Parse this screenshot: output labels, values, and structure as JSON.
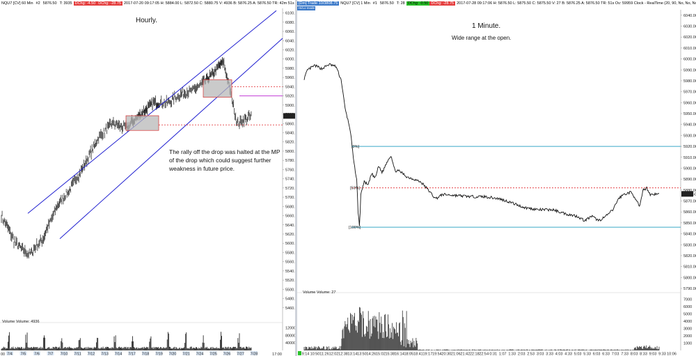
{
  "left": {
    "header_segments": [
      {
        "text": "NQU7 [CV]  60 Min",
        "style": "plain"
      },
      {
        "text": "#2",
        "style": "plain"
      },
      {
        "text": "5876.50",
        "style": "plain"
      },
      {
        "text": "T: 3935",
        "style": "plain"
      },
      {
        "text": "DChg: -4.50",
        "style": "red"
      },
      {
        "text": "DChg: -28.75",
        "style": "red"
      },
      {
        "text": "2017-07-20 09:17:05  H: 5884.00  L: 5872.50  C: 5880.75  V: 4936  B: 5876.25  A: 5876.50  TR: 42m 51s  Ov: 59959",
        "style": "plain"
      }
    ],
    "title": "Hourly.",
    "annotation": "The rally off the drop was halted at the MP of the drop which could suggest further weakness in future price.",
    "volume_label": "Volume  Volume: 4936",
    "price_ticks": [
      "6100.00",
      "6080.00",
      "6060.00",
      "6040.00",
      "6020.00",
      "6000.00",
      "5980.00",
      "5960.00",
      "5940.00",
      "5920.00",
      "5900.00",
      "5880.00",
      "5860.00",
      "5840.00",
      "5820.00",
      "5800.00",
      "5780.00",
      "5760.00",
      "5740.00",
      "5720.00",
      "5700.00",
      "5680.00",
      "5660.00",
      "5640.00",
      "5620.00",
      "5600.00",
      "5580.00",
      "5560.00",
      "5540.00",
      "5520.00",
      "5500.00",
      "5480.00",
      "5460.00"
    ],
    "volume_ticks": [
      "120000",
      "80000",
      "40000"
    ],
    "last_price_tag": "5876.50",
    "time_ticks": [
      "7/4",
      "7/5",
      "7/6",
      "7/7",
      "7/10",
      "7/11",
      "7/12",
      "7/13",
      "7/14",
      "7/17",
      "7/18",
      "7/19",
      "7/20",
      "7/21",
      "7/24",
      "7/25",
      "7/26",
      "7/27",
      "7/28"
    ],
    "time_suffix": "17:00",
    "time_prefix": "00"
  },
  "right": {
    "header_segments": [
      {
        "text": "[Dm]  Trade  10/3808.75",
        "style": "blue"
      },
      {
        "text": "NQU7 [CV]  1 Min",
        "style": "plain"
      },
      {
        "text": "#1",
        "style": "plain"
      },
      {
        "text": "5876.50",
        "style": "plain"
      },
      {
        "text": "T: 28",
        "style": "plain"
      },
      {
        "text": "DChg: -0.50",
        "style": "green"
      },
      {
        "text": "DChg: -28.75",
        "style": "red"
      },
      {
        "text": "2017-07-28 09:17:06  H: 5876.50  L: 5875.50  C: 5875.50  V: 27  B: 5876.25  A: 5876.50  TR: 51s  Ov: 59959  Clock - RealTime   (20, 90, No, No, No, No)",
        "style": "plain"
      }
    ],
    "sub_chip": "Hi/Lo mode",
    "title": "1 Minute.",
    "subtitle": "Wide range  at the open.",
    "volume_label": "Volume  Volume: 27",
    "fib_labels": [
      "[0%]",
      "[50%]",
      "[100%]"
    ],
    "price_ticks": [
      "6040.00",
      "6030.00",
      "6020.00",
      "6010.00",
      "6000.00",
      "5990.00",
      "5980.00",
      "5970.00",
      "5960.00",
      "5950.00",
      "5940.00",
      "5930.00",
      "5920.00",
      "5910.00",
      "5900.00",
      "5890.00",
      "5880.00",
      "5870.00",
      "5860.00",
      "5850.00",
      "5840.00",
      "5830.00",
      "5820.00",
      "5810.00",
      "5800.00",
      "5790.00"
    ],
    "volume_ticks": [
      "7000",
      "6000",
      "5000",
      "4000",
      "3000",
      "2000",
      "1000"
    ],
    "last_price_tag": "5876.50",
    "time_ticks": [
      "9:14",
      "10:50",
      "11:26",
      "12:02",
      "12:38",
      "13:14",
      "13:50",
      "14:26",
      "15:02",
      "15:38",
      "16:14",
      "18:05",
      "18:41",
      "19:17",
      "19:54",
      "20:30",
      "21:06",
      "21:42",
      "22:18",
      "22:54",
      "0:31",
      "1:07",
      "1:33",
      "2:03",
      "2:53",
      "3:03",
      "3:33",
      "4:03",
      "4:33",
      "5:03",
      "5:33",
      "6:03",
      "6:33",
      "7:03",
      "7:33",
      "8:03",
      "8:33",
      "9:03",
      "9:33",
      "10:06"
    ]
  },
  "colors": {
    "channel": "#1f1fd0",
    "dashed": "#e0262b",
    "magenta": "#c23bd6",
    "cyan": "#3aa9c6",
    "box_fill": "#b8b8b8",
    "box_border": "#d53030"
  },
  "chart_data": [
    {
      "type": "line",
      "title": "Hourly.",
      "series": [
        {
          "name": "NQU7 [CV] 60 Min",
          "x": [
            "7/4",
            "7/5",
            "7/6",
            "7/7",
            "7/10",
            "7/11",
            "7/12",
            "7/13",
            "7/14",
            "7/17",
            "7/18",
            "7/19",
            "7/20",
            "7/21",
            "7/24",
            "7/25",
            "7/26",
            "7/27",
            "7/28"
          ],
          "values": [
            5660,
            5600,
            5575,
            5610,
            5680,
            5720,
            5770,
            5830,
            5860,
            5850,
            5880,
            5905,
            5905,
            5925,
            5935,
            5960,
            5995,
            5860,
            5876.5
          ]
        }
      ],
      "ylim": [
        5440,
        6110
      ],
      "annotations": [
        {
          "type": "dashed-line",
          "value": 5940
        },
        {
          "type": "dashed-line",
          "value": 5857
        },
        {
          "type": "level-line",
          "value": 5920
        }
      ]
    },
    {
      "type": "line",
      "title": "1 Minute.",
      "series": [
        {
          "name": "NQU7 [CV] 1 Min",
          "x": [
            "9:14",
            "10:50",
            "11:26",
            "12:02",
            "12:38",
            "13:14",
            "13:50",
            "14:26",
            "15:02",
            "15:38",
            "16:14",
            "18:05",
            "18:41",
            "19:17",
            "19:54",
            "20:30",
            "21:06",
            "21:42",
            "22:18",
            "22:54",
            "0:31",
            "1:07",
            "1:33",
            "2:03",
            "2:53",
            "3:03",
            "3:33",
            "4:03",
            "4:33",
            "5:03",
            "5:33",
            "6:03",
            "6:33",
            "7:03",
            "7:33",
            "8:03",
            "8:33",
            "9:03",
            "9:33",
            "10:06"
          ],
          "values": [
            5990,
            5994,
            5992,
            5995,
            5993,
            5950,
            5870,
            5855,
            5896,
            5912,
            5900,
            5892,
            5890,
            5882,
            5874,
            5873,
            5872,
            5871,
            5869,
            5864,
            5862,
            5860,
            5858,
            5856,
            5856,
            5858,
            5855,
            5853,
            5852,
            5854,
            5858,
            5865,
            5872,
            5878,
            5876,
            5871,
            5873,
            5876.5,
            5876,
            5876.5
          ]
        }
      ],
      "ylim": [
        5790,
        6045
      ],
      "annotations": [
        {
          "label": "[0%]",
          "value": 5920
        },
        {
          "label": "[50%]",
          "value": 5882
        },
        {
          "label": "[100%]",
          "value": 5846
        }
      ]
    }
  ]
}
